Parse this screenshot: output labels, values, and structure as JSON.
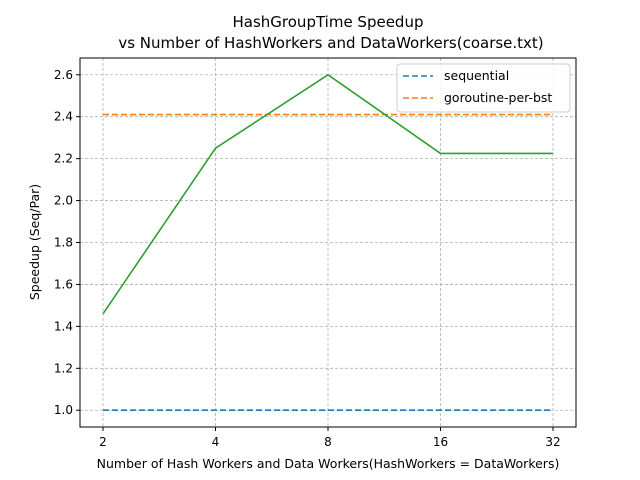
{
  "chart_data": {
    "type": "line",
    "title": [
      "HashGroupTime Speedup",
      "vs Number of HashWorkers and DataWorkers(coarse.txt)"
    ],
    "xlabel": "Number of Hash Workers and Data Workers(HashWorkers = DataWorkers)",
    "ylabel": "Speedup (Seq/Par)",
    "x_scale": "log2",
    "x": [
      2,
      4,
      8,
      16,
      32
    ],
    "x_tick_labels": [
      "2",
      "4",
      "8",
      "16",
      "32"
    ],
    "y_ticks": [
      1.0,
      1.2,
      1.4,
      1.6,
      1.8,
      2.0,
      2.2,
      2.4,
      2.6
    ],
    "y_tick_labels": [
      "1.0",
      "1.2",
      "1.4",
      "1.6",
      "1.8",
      "2.0",
      "2.2",
      "2.4",
      "2.6"
    ],
    "ylim": [
      0.92,
      2.68
    ],
    "grid": true,
    "legend_position": "top-right",
    "series": [
      {
        "name": "sequential",
        "values": [
          1.0,
          1.0,
          1.0,
          1.0,
          1.0
        ],
        "color": "#1f77b4",
        "style": "dashed"
      },
      {
        "name": "goroutine-per-bst",
        "values": [
          2.41,
          2.41,
          2.41,
          2.41,
          2.41
        ],
        "color": "#ff7f0e",
        "style": "dashed"
      },
      {
        "values": [
          1.46,
          2.25,
          2.6,
          2.225,
          2.225
        ],
        "color": "#2ca02c",
        "style": "solid"
      }
    ]
  }
}
